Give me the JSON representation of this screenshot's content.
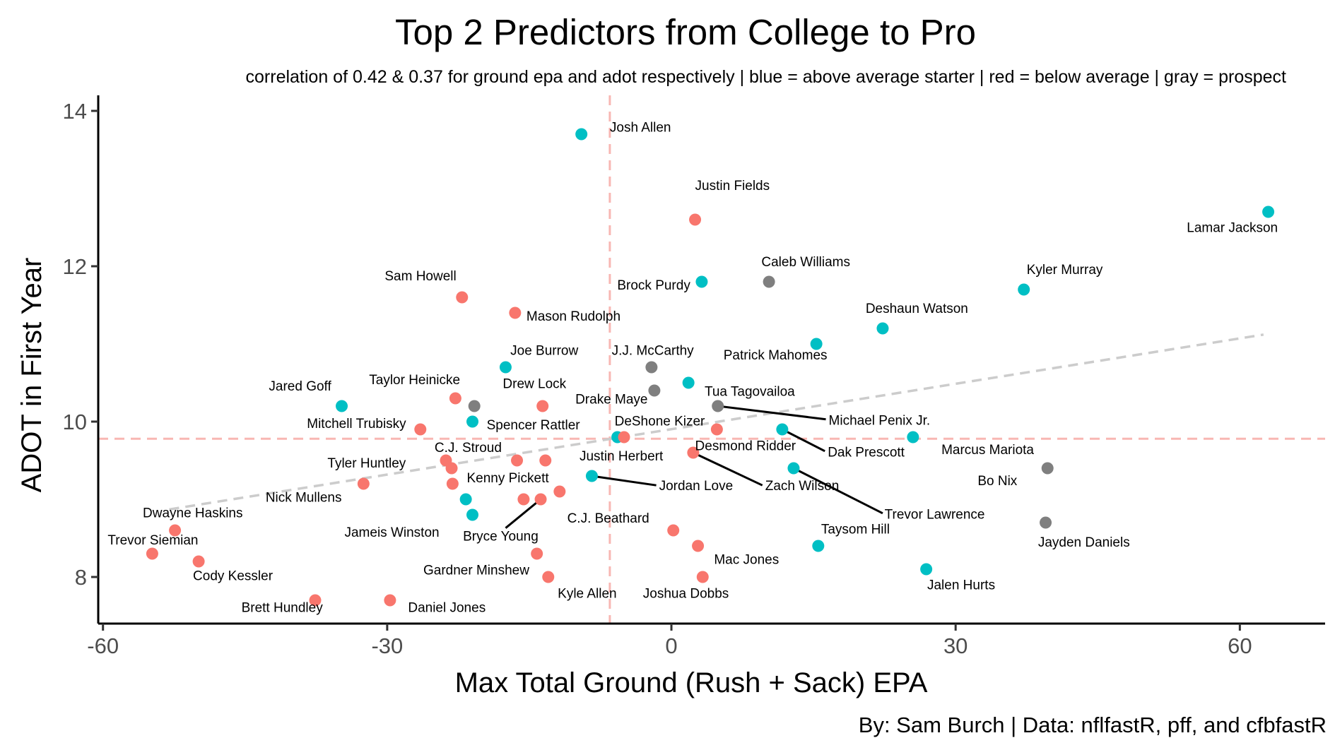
{
  "chart_data": {
    "type": "scatter",
    "title": "Top 2 Predictors from College to Pro",
    "subtitle": "correlation of 0.42 & 0.37 for ground epa and adot respectively  |  blue = above average starter  | red = below average  |  gray = prospect",
    "caption": "By: Sam Burch  |  Data: nflfastR, pff, and cfbfastR",
    "xlabel": "Max Total Ground (Rush + Sack) EPA",
    "ylabel": "ADOT in First Year",
    "xlim": [
      -60.5,
      69
    ],
    "ylim": [
      7.4,
      14.2
    ],
    "x_ticks": [
      -60,
      -30,
      0,
      30,
      60
    ],
    "y_ticks": [
      8,
      10,
      12,
      14
    ],
    "reference_lines": {
      "x": -6.5,
      "y": 9.78
    },
    "trend_line": {
      "x": [
        -53,
        62.5
      ],
      "y": [
        8.87,
        11.12
      ]
    },
    "colors": {
      "above_average_starter": "#00BFC4",
      "below_average": "#F8766D",
      "prospect": "#7F7F7F",
      "reference": "#F8B7B3",
      "trend": "#CCCCCC"
    },
    "points": [
      {
        "name": "Josh Allen",
        "x": -9.5,
        "y": 13.7,
        "group": "above_average_starter"
      },
      {
        "name": "Lamar Jackson",
        "x": 63,
        "y": 12.7,
        "group": "above_average_starter"
      },
      {
        "name": "Brock Purdy",
        "x": 3.2,
        "y": 11.8,
        "group": "above_average_starter"
      },
      {
        "name": "Kyler Murray",
        "x": 37.2,
        "y": 11.7,
        "group": "above_average_starter"
      },
      {
        "name": "Deshaun Watson",
        "x": 22.3,
        "y": 11.2,
        "group": "above_average_starter"
      },
      {
        "name": "Patrick Mahomes",
        "x": 15.3,
        "y": 11.0,
        "group": "above_average_starter"
      },
      {
        "name": "Joe Burrow",
        "x": -17.5,
        "y": 10.7,
        "group": "above_average_starter"
      },
      {
        "name": "Tua Tagovailoa",
        "x": 1.8,
        "y": 10.5,
        "group": "above_average_starter"
      },
      {
        "name": "Jared Goff",
        "x": -34.8,
        "y": 10.2,
        "group": "above_average_starter"
      },
      {
        "name": "Spencer Rattler",
        "x": -21,
        "y": 10.0,
        "group": "above_average_starter"
      },
      {
        "name": "Dak Prescott",
        "x": 11.7,
        "y": 9.9,
        "group": "above_average_starter"
      },
      {
        "name": "DeShone Kizer",
        "x": -5.7,
        "y": 9.8,
        "group": "above_average_starter"
      },
      {
        "name": "Marcus Mariota",
        "x": 25.5,
        "y": 9.8,
        "group": "above_average_starter"
      },
      {
        "name": "Trevor Lawrence",
        "x": 12.9,
        "y": 9.4,
        "group": "above_average_starter"
      },
      {
        "name": "Jordan Love",
        "x": -8.4,
        "y": 9.3,
        "group": "above_average_starter"
      },
      {
        "name": "Nick Mullens",
        "x": -21.7,
        "y": 9.0,
        "group": "above_average_starter"
      },
      {
        "name": "Jameis Winston",
        "x": -21,
        "y": 8.8,
        "group": "above_average_starter"
      },
      {
        "name": "Taysom Hill",
        "x": 15.5,
        "y": 8.4,
        "group": "above_average_starter"
      },
      {
        "name": "Jalen Hurts",
        "x": 26.9,
        "y": 8.1,
        "group": "above_average_starter"
      },
      {
        "name": "Justin Fields",
        "x": 2.5,
        "y": 12.6,
        "group": "below_average"
      },
      {
        "name": "Sam Howell",
        "x": -22.1,
        "y": 11.6,
        "group": "below_average"
      },
      {
        "name": "Mason Rudolph",
        "x": -16.5,
        "y": 11.4,
        "group": "below_average"
      },
      {
        "name": "Taylor Heinicke",
        "x": -22.8,
        "y": 10.3,
        "group": "below_average"
      },
      {
        "name": "Drew Lock",
        "x": -13.6,
        "y": 10.2,
        "group": "below_average"
      },
      {
        "name": "Mitchell Trubisky",
        "x": -26.5,
        "y": 9.9,
        "group": "below_average"
      },
      {
        "name": "Zach Wilson",
        "x": 4.8,
        "y": 9.9,
        "group": "below_average"
      },
      {
        "name": "Justin Herbert",
        "x": -5,
        "y": 9.8,
        "group": "below_average"
      },
      {
        "name": "Desmond Ridder",
        "x": 2.3,
        "y": 9.6,
        "group": "below_average"
      },
      {
        "name": "C.J. Stroud",
        "x": -16.3,
        "y": 9.5,
        "group": "below_average"
      },
      {
        "name": "Kenny Pickett",
        "x": -13.3,
        "y": 9.5,
        "group": "below_average"
      },
      {
        "name": "Tyler Huntley",
        "x": -23.8,
        "y": 9.5,
        "group": "below_average"
      },
      {
        "name": "Tyler Huntley",
        "x": -23.2,
        "y": 9.4,
        "group": "below_average"
      },
      {
        "name": "Tyler Huntley",
        "x": -23.1,
        "y": 9.2,
        "group": "below_average"
      },
      {
        "name": "Tyler Huntley",
        "x": -32.5,
        "y": 9.2,
        "group": "below_average"
      },
      {
        "name": "Kenny Pickett",
        "x": -11.8,
        "y": 9.1,
        "group": "below_average"
      },
      {
        "name": "Bryce Young",
        "x": -15.6,
        "y": 9.0,
        "group": "below_average"
      },
      {
        "name": "Bryce Young",
        "x": -13.8,
        "y": 9.0,
        "group": "below_average"
      },
      {
        "name": "Dwayne Haskins",
        "x": -52.4,
        "y": 8.6,
        "group": "below_average"
      },
      {
        "name": "C.J. Beathard",
        "x": 0.2,
        "y": 8.6,
        "group": "below_average"
      },
      {
        "name": "Joshua Dobbs",
        "x": 2.8,
        "y": 8.4,
        "group": "below_average"
      },
      {
        "name": "Trevor Siemian",
        "x": -54.8,
        "y": 8.3,
        "group": "below_average"
      },
      {
        "name": "Gardner Minshew",
        "x": -14.2,
        "y": 8.3,
        "group": "below_average"
      },
      {
        "name": "Cody Kessler",
        "x": -49.9,
        "y": 8.2,
        "group": "below_average"
      },
      {
        "name": "Kyle Allen",
        "x": -13,
        "y": 8.0,
        "group": "below_average"
      },
      {
        "name": "Mac Jones",
        "x": 3.3,
        "y": 8.0,
        "group": "below_average"
      },
      {
        "name": "Brett Hundley",
        "x": -37.6,
        "y": 7.7,
        "group": "below_average"
      },
      {
        "name": "Daniel Jones",
        "x": -29.7,
        "y": 7.7,
        "group": "below_average"
      },
      {
        "name": "Caleb Williams",
        "x": 10.3,
        "y": 11.8,
        "group": "prospect"
      },
      {
        "name": "J.J. McCarthy",
        "x": -2.1,
        "y": 10.7,
        "group": "prospect"
      },
      {
        "name": "Drake Maye",
        "x": -1.8,
        "y": 10.4,
        "group": "prospect"
      },
      {
        "name": "Michael Penix Jr.",
        "x": 4.9,
        "y": 10.2,
        "group": "prospect"
      },
      {
        "name": "C.J. Stroud",
        "x": -20.8,
        "y": 10.2,
        "group": "prospect"
      },
      {
        "name": "Bo Nix",
        "x": 39.7,
        "y": 9.4,
        "group": "prospect"
      },
      {
        "name": "Jayden Daniels",
        "x": 39.5,
        "y": 8.7,
        "group": "prospect"
      }
    ],
    "labels": [
      {
        "text": "Josh Allen",
        "x": -6.5,
        "y": 13.73,
        "anchor": "start"
      },
      {
        "text": "Lamar Jackson",
        "x": 54.4,
        "y": 12.44,
        "anchor": "start"
      },
      {
        "text": "Justin Fields",
        "x": 2.5,
        "y": 12.98,
        "anchor": "start"
      },
      {
        "text": "Caleb Williams",
        "x": 9.5,
        "y": 12.0,
        "anchor": "start"
      },
      {
        "text": "Kyler Murray",
        "x": 37.5,
        "y": 11.9,
        "anchor": "start"
      },
      {
        "text": "Brock Purdy",
        "x": 2.0,
        "y": 11.7,
        "anchor": "end"
      },
      {
        "text": "Sam Howell",
        "x": -22.7,
        "y": 11.82,
        "anchor": "end"
      },
      {
        "text": "Deshaun Watson",
        "x": 20.5,
        "y": 11.4,
        "anchor": "start"
      },
      {
        "text": "Mason Rudolph",
        "x": -15.3,
        "y": 11.3,
        "anchor": "start"
      },
      {
        "text": "Patrick Mahomes",
        "x": 5.5,
        "y": 10.8,
        "anchor": "start"
      },
      {
        "text": "Joe Burrow",
        "x": -17.0,
        "y": 10.86,
        "anchor": "start"
      },
      {
        "text": "J.J. McCarthy",
        "x": -6.3,
        "y": 10.86,
        "anchor": "start"
      },
      {
        "text": "Taylor Heinicke",
        "x": -22.3,
        "y": 10.48,
        "anchor": "end"
      },
      {
        "text": "Drew Lock",
        "x": -17.8,
        "y": 10.43,
        "anchor": "start"
      },
      {
        "text": "Jared Goff",
        "x": -35.9,
        "y": 10.4,
        "anchor": "end"
      },
      {
        "text": "Tua Tagovailoa",
        "x": 3.5,
        "y": 10.33,
        "anchor": "start"
      },
      {
        "text": "Drake Maye",
        "x": -2.5,
        "y": 10.23,
        "anchor": "end"
      },
      {
        "text": "Michael Penix Jr.",
        "x": 16.6,
        "y": 9.96,
        "anchor": "start"
      },
      {
        "text": "Mitchell Trubisky",
        "x": -28,
        "y": 9.92,
        "anchor": "end"
      },
      {
        "text": "Spencer Rattler",
        "x": -19.5,
        "y": 9.9,
        "anchor": "start"
      },
      {
        "text": "DeShone Kizer",
        "x": -6,
        "y": 9.95,
        "anchor": "start"
      },
      {
        "text": "Justin Herbert",
        "x": -9.7,
        "y": 9.5,
        "anchor": "start"
      },
      {
        "text": "Desmond Ridder",
        "x": 2.5,
        "y": 9.63,
        "anchor": "start"
      },
      {
        "text": "Dak Prescott",
        "x": 16.5,
        "y": 9.55,
        "anchor": "start"
      },
      {
        "text": "Marcus Mariota",
        "x": 28.5,
        "y": 9.58,
        "anchor": "start"
      },
      {
        "text": "C.J. Stroud",
        "x": -25,
        "y": 9.61,
        "anchor": "start"
      },
      {
        "text": "Tyler Huntley",
        "x": -36.3,
        "y": 9.41,
        "anchor": "start"
      },
      {
        "text": "Kenny Pickett",
        "x": -21.6,
        "y": 9.22,
        "anchor": "start"
      },
      {
        "text": "Jordan Love",
        "x": -1.3,
        "y": 9.12,
        "anchor": "start"
      },
      {
        "text": "Zach Wilson",
        "x": 9.9,
        "y": 9.12,
        "anchor": "start"
      },
      {
        "text": "Trevor Lawrence",
        "x": 22.5,
        "y": 8.75,
        "anchor": "start"
      },
      {
        "text": "Bo Nix",
        "x": 36.5,
        "y": 9.18,
        "anchor": "end"
      },
      {
        "text": "Nick Mullens",
        "x": -34.8,
        "y": 8.97,
        "anchor": "end"
      },
      {
        "text": "Dwayne Haskins",
        "x": -55.8,
        "y": 8.77,
        "anchor": "start"
      },
      {
        "text": "C.J. Beathard",
        "x": -11,
        "y": 8.7,
        "anchor": "start"
      },
      {
        "text": "Taysom Hill",
        "x": 15.8,
        "y": 8.56,
        "anchor": "start"
      },
      {
        "text": "Jayden Daniels",
        "x": 38.7,
        "y": 8.39,
        "anchor": "start"
      },
      {
        "text": "Jameis Winston",
        "x": -24.5,
        "y": 8.52,
        "anchor": "end"
      },
      {
        "text": "Bryce Young",
        "x": -22,
        "y": 8.47,
        "anchor": "start"
      },
      {
        "text": "Trevor Siemian",
        "x": -59.5,
        "y": 8.42,
        "anchor": "start"
      },
      {
        "text": "Mac Jones",
        "x": 4.5,
        "y": 8.17,
        "anchor": "start"
      },
      {
        "text": "Gardner Minshew",
        "x": -15,
        "y": 8.03,
        "anchor": "end"
      },
      {
        "text": "Cody Kessler",
        "x": -50.5,
        "y": 7.96,
        "anchor": "start"
      },
      {
        "text": "Jalen Hurts",
        "x": 27,
        "y": 7.84,
        "anchor": "start"
      },
      {
        "text": "Kyle Allen",
        "x": -12,
        "y": 7.73,
        "anchor": "start"
      },
      {
        "text": "Joshua Dobbs",
        "x": -3,
        "y": 7.73,
        "anchor": "start"
      },
      {
        "text": "Brett Hundley",
        "x": -36.8,
        "y": 7.55,
        "anchor": "end"
      },
      {
        "text": "Daniel Jones",
        "x": -27.8,
        "y": 7.55,
        "anchor": "start"
      }
    ],
    "connectors": [
      {
        "from": [
          4.9,
          10.2
        ],
        "to": [
          16.3,
          10.03
        ]
      },
      {
        "from": [
          11.7,
          9.9
        ],
        "to": [
          16.2,
          9.62
        ]
      },
      {
        "from": [
          12.9,
          9.4
        ],
        "to": [
          22.3,
          8.82
        ]
      },
      {
        "from": [
          -8.4,
          9.3
        ],
        "to": [
          -1.6,
          9.18
        ]
      },
      {
        "from": [
          2.3,
          9.6
        ],
        "to": [
          9.6,
          9.18
        ]
      },
      {
        "from": [
          -13.8,
          9.0
        ],
        "to": [
          -17.5,
          8.63
        ]
      }
    ]
  }
}
